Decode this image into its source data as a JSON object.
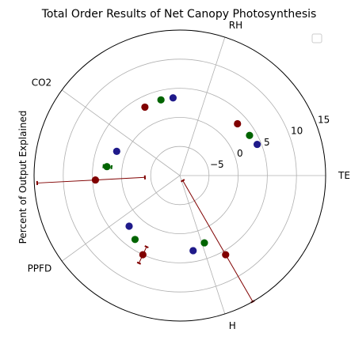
{
  "chart_data": {
    "type": "scatter",
    "projection": "polar",
    "title": "Total Order Results of Net Canopy Photosynthesis",
    "ylabel": "Percent of Output Explained",
    "categories": [
      "TEMP",
      "RH",
      "CO2",
      "PPFD",
      "H"
    ],
    "radial_ticks": [
      -5,
      0,
      5,
      10,
      15
    ],
    "rlim": [
      -10,
      15
    ],
    "grid": true,
    "legend": {
      "placement": "top-right",
      "entries": []
    },
    "colors": {
      "dark_red": "#800000",
      "green": "#006400",
      "navy": "#1f1a8a",
      "grid": "#b0b0b0",
      "spine": "#000000"
    },
    "series": [
      {
        "color": "dark_red",
        "points": [
          [
            42,
            3.3
          ],
          [
            117,
            3.2
          ],
          [
            183,
            4.5
          ],
          [
            245,
            5.0
          ],
          [
            300,
            5.7
          ]
        ]
      },
      {
        "color": "green",
        "points": [
          [
            30,
            3.8
          ],
          [
            104,
            3.4
          ],
          [
            173,
            2.6
          ],
          [
            235,
            3.4
          ],
          [
            290,
            2.3
          ]
        ]
      },
      {
        "color": "navy",
        "points": [
          [
            22,
            4.3
          ],
          [
            95,
            3.4
          ],
          [
            159,
            1.6
          ],
          [
            225,
            2.3
          ],
          [
            280,
            3.1
          ]
        ]
      }
    ],
    "error_bars": [
      {
        "theta": 183,
        "r_low": -4.0,
        "r_high": 14.5,
        "color": "dark_red"
      },
      {
        "theta": 300,
        "r_low": -9.0,
        "r_high": 15.0,
        "color": "dark_red"
      },
      {
        "theta": 173,
        "r_low": 1.8,
        "r_high": 3.2,
        "color": "green"
      },
      {
        "theta": 245,
        "r_low": 3.5,
        "r_high": 6.6,
        "color": "dark_red"
      },
      {
        "theta": 280,
        "r_low": 2.7,
        "r_high": 3.4,
        "color": "navy"
      }
    ]
  }
}
